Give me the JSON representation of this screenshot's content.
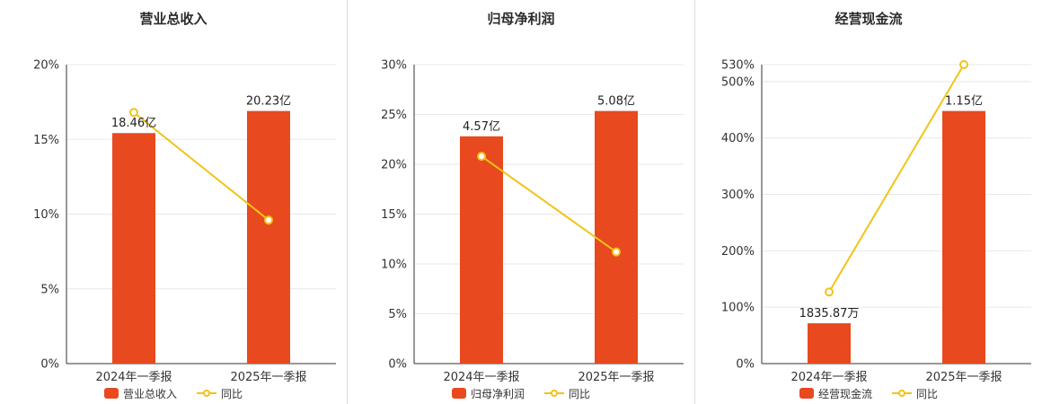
{
  "accent_colors": {
    "bar": "#e8491f",
    "line": "#f2c318",
    "axis": "#333333",
    "grid": "#e8e8e8",
    "divider": "#dcdcdc",
    "text": "#333333",
    "label": "#222222",
    "background": "#ffffff"
  },
  "chart_data": [
    {
      "type": "bar",
      "title": "营业总收入",
      "categories": [
        "2024年一季报",
        "2025年一季报"
      ],
      "series": [
        {
          "name": "营业总收入",
          "kind": "bar",
          "values": [
            18.46,
            20.23
          ],
          "unit": "亿",
          "labels": [
            "18.46亿",
            "20.23亿"
          ]
        },
        {
          "name": "同比",
          "kind": "line",
          "values": [
            16.8,
            9.6
          ],
          "unit": "%"
        }
      ],
      "ylim": [
        0,
        20
      ],
      "yticks": [
        0,
        5,
        10,
        15,
        20
      ],
      "ytick_labels": [
        "0%",
        "5%",
        "10%",
        "15%",
        "20%"
      ],
      "grid": true,
      "legend_position": "bottom"
    },
    {
      "type": "bar",
      "title": "归母净利润",
      "categories": [
        "2024年一季报",
        "2025年一季报"
      ],
      "series": [
        {
          "name": "归母净利润",
          "kind": "bar",
          "values": [
            4.57,
            5.08
          ],
          "unit": "亿",
          "labels": [
            "4.57亿",
            "5.08亿"
          ]
        },
        {
          "name": "同比",
          "kind": "line",
          "values": [
            20.8,
            11.2
          ],
          "unit": "%"
        }
      ],
      "ylim": [
        0,
        30
      ],
      "yticks": [
        0,
        5,
        10,
        15,
        20,
        25,
        30
      ],
      "ytick_labels": [
        "0%",
        "5%",
        "10%",
        "15%",
        "20%",
        "25%",
        "30%"
      ],
      "grid": true,
      "legend_position": "bottom"
    },
    {
      "type": "bar",
      "title": "经营现金流",
      "categories": [
        "2024年一季报",
        "2025年一季报"
      ],
      "series": [
        {
          "name": "经营现金流",
          "kind": "bar",
          "values": [
            1835.87,
            11500
          ],
          "unit": "万",
          "labels": [
            "1835.87万",
            "1.15亿"
          ]
        },
        {
          "name": "同比",
          "kind": "line",
          "values": [
            127,
            530
          ],
          "unit": "%"
        }
      ],
      "ylim": [
        0,
        530
      ],
      "yticks": [
        0,
        100,
        200,
        300,
        400,
        500,
        530
      ],
      "ytick_labels": [
        "0%",
        "100%",
        "200%",
        "300%",
        "400%",
        "500%",
        "530%"
      ],
      "grid": true,
      "legend_position": "bottom"
    }
  ]
}
